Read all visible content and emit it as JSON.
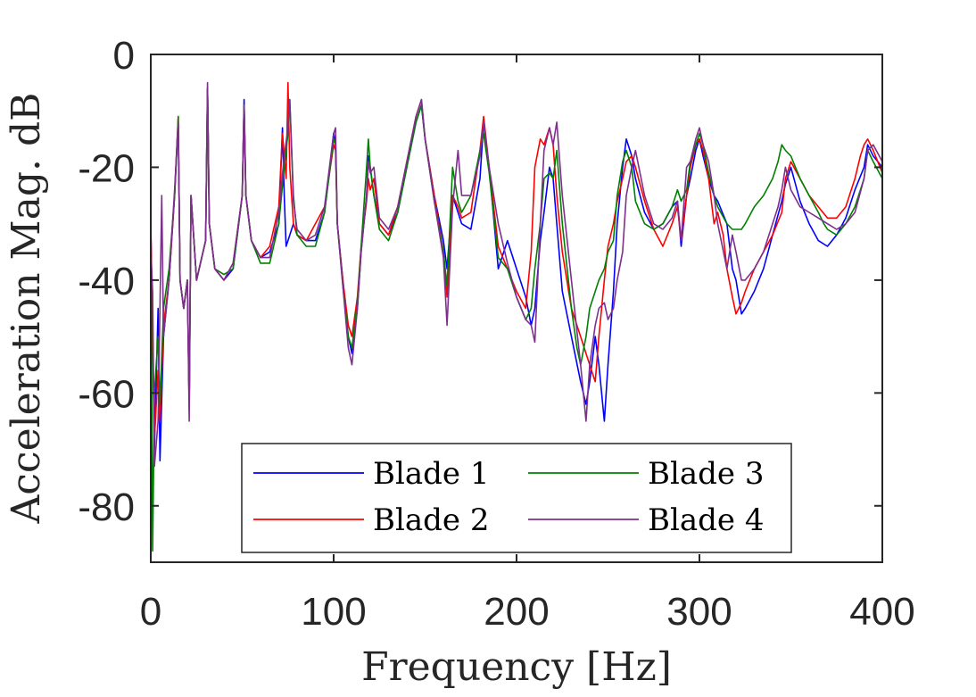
{
  "chart_data": {
    "type": "line",
    "title": "",
    "xlabel": "Frequency [Hz]",
    "ylabel": "Acceleration Mag. dB",
    "xlim": [
      0,
      400
    ],
    "ylim": [
      -90,
      0
    ],
    "xticks": [
      0,
      100,
      200,
      300,
      400
    ],
    "yticks": [
      0,
      -20,
      -40,
      -60,
      -80
    ],
    "xtick_labels": [
      "0",
      "100",
      "200",
      "300",
      "400"
    ],
    "ytick_labels": [
      "0",
      "-20",
      "-40",
      "-60",
      "-80"
    ],
    "grid": false,
    "legend": {
      "position": "bottom-center",
      "columns": 2
    },
    "series": [
      {
        "name": "Blade 1",
        "color": "#0000ff",
        "x": [
          0,
          2,
          4,
          5,
          7,
          10,
          13,
          15,
          16,
          18,
          20,
          21,
          22,
          25,
          30,
          31,
          32,
          35,
          40,
          45,
          50,
          51,
          52,
          55,
          60,
          65,
          70,
          72,
          73,
          74,
          75,
          78,
          80,
          85,
          90,
          95,
          100,
          101,
          102,
          105,
          108,
          110,
          113,
          115,
          118,
          119,
          120,
          122,
          125,
          130,
          135,
          140,
          145,
          148,
          150,
          155,
          160,
          162,
          165,
          168,
          170,
          175,
          180,
          182,
          185,
          190,
          195,
          200,
          205,
          208,
          210,
          213,
          215,
          218,
          220,
          222,
          225,
          230,
          235,
          238,
          240,
          243,
          245,
          248,
          250,
          253,
          255,
          258,
          260,
          263,
          265,
          270,
          275,
          280,
          285,
          288,
          290,
          293,
          295,
          298,
          300,
          302,
          305,
          308,
          310,
          315,
          318,
          320,
          323,
          325,
          330,
          335,
          340,
          345,
          347,
          350,
          355,
          360,
          365,
          370,
          375,
          380,
          385,
          390,
          392,
          395,
          400
        ],
        "values": [
          -30,
          -70,
          -45,
          -72,
          -50,
          -40,
          -25,
          -12,
          -40,
          -45,
          -40,
          -62,
          -25,
          -40,
          -33,
          -6,
          -30,
          -38,
          -40,
          -38,
          -25,
          -8,
          -25,
          -33,
          -36,
          -35,
          -30,
          -13,
          -25,
          -34,
          -33,
          -30,
          -32,
          -33,
          -33,
          -28,
          -14,
          -16,
          -30,
          -40,
          -50,
          -53,
          -45,
          -35,
          -25,
          -18,
          -20,
          -25,
          -30,
          -32,
          -28,
          -20,
          -12,
          -9,
          -15,
          -25,
          -33,
          -38,
          -25,
          -28,
          -30,
          -31,
          -22,
          -12,
          -20,
          -38,
          -33,
          -38,
          -43,
          -48,
          -45,
          -33,
          -28,
          -20,
          -22,
          -30,
          -42,
          -50,
          -58,
          -62,
          -58,
          -50,
          -55,
          -65,
          -55,
          -42,
          -30,
          -20,
          -15,
          -18,
          -22,
          -28,
          -31,
          -30,
          -27,
          -26,
          -34,
          -25,
          -22,
          -17,
          -15,
          -18,
          -22,
          -25,
          -26,
          -30,
          -38,
          -40,
          -46,
          -45,
          -42,
          -38,
          -32,
          -26,
          -23,
          -20,
          -26,
          -30,
          -33,
          -34,
          -32,
          -29,
          -24,
          -20,
          -16,
          -18,
          -20
        ]
      },
      {
        "name": "Blade 2",
        "color": "#ff0000",
        "x": [
          0,
          2,
          4,
          5,
          7,
          10,
          13,
          15,
          16,
          18,
          20,
          21,
          22,
          25,
          30,
          31,
          32,
          35,
          40,
          45,
          50,
          51,
          52,
          55,
          60,
          65,
          70,
          72,
          74,
          75,
          76,
          78,
          80,
          85,
          90,
          95,
          100,
          101,
          102,
          105,
          108,
          110,
          113,
          115,
          118,
          119,
          120,
          122,
          125,
          130,
          135,
          140,
          145,
          148,
          150,
          155,
          160,
          162,
          165,
          168,
          170,
          175,
          180,
          182,
          185,
          190,
          195,
          200,
          205,
          208,
          210,
          213,
          215,
          218,
          220,
          222,
          225,
          230,
          235,
          238,
          240,
          243,
          245,
          248,
          250,
          253,
          255,
          258,
          260,
          263,
          265,
          270,
          275,
          280,
          285,
          288,
          290,
          293,
          295,
          298,
          300,
          302,
          305,
          308,
          310,
          313,
          315,
          318,
          320,
          323,
          325,
          330,
          335,
          340,
          345,
          347,
          350,
          355,
          360,
          365,
          370,
          375,
          380,
          385,
          388,
          390,
          392,
          395,
          400
        ],
        "values": [
          -30,
          -68,
          -56,
          -65,
          -48,
          -40,
          -25,
          -11,
          -40,
          -45,
          -40,
          -63,
          -25,
          -40,
          -33,
          -6,
          -30,
          -38,
          -40,
          -37,
          -25,
          -9,
          -25,
          -33,
          -36,
          -34,
          -27,
          -14,
          -22,
          -5,
          -20,
          -30,
          -32,
          -33,
          -30,
          -27,
          -16,
          -17,
          -30,
          -40,
          -48,
          -50,
          -43,
          -34,
          -26,
          -22,
          -24,
          -22,
          -30,
          -32,
          -27,
          -19,
          -11,
          -8,
          -15,
          -25,
          -35,
          -43,
          -25,
          -27,
          -29,
          -28,
          -17,
          -11,
          -20,
          -34,
          -38,
          -42,
          -45,
          -35,
          -20,
          -15,
          -16,
          -13,
          -16,
          -25,
          -35,
          -45,
          -50,
          -53,
          -55,
          -58,
          -50,
          -40,
          -34,
          -30,
          -26,
          -22,
          -19,
          -18,
          -20,
          -26,
          -31,
          -34,
          -30,
          -27,
          -33,
          -25,
          -20,
          -16,
          -15,
          -17,
          -22,
          -30,
          -28,
          -32,
          -38,
          -43,
          -46,
          -44,
          -42,
          -38,
          -35,
          -32,
          -28,
          -22,
          -19,
          -22,
          -25,
          -27,
          -29,
          -29,
          -27,
          -22,
          -18,
          -16,
          -15,
          -17,
          -21
        ]
      },
      {
        "name": "Blade 3",
        "color": "#008000",
        "x": [
          0,
          1,
          2,
          4,
          5,
          7,
          10,
          13,
          15,
          16,
          18,
          20,
          21,
          22,
          25,
          30,
          31,
          32,
          35,
          40,
          45,
          50,
          51,
          52,
          55,
          60,
          65,
          70,
          73,
          75,
          76,
          78,
          80,
          85,
          90,
          95,
          100,
          101,
          102,
          105,
          108,
          110,
          113,
          115,
          118,
          119,
          120,
          122,
          125,
          130,
          135,
          140,
          145,
          148,
          150,
          155,
          160,
          162,
          165,
          168,
          170,
          175,
          180,
          182,
          185,
          190,
          195,
          200,
          205,
          208,
          210,
          213,
          215,
          218,
          220,
          222,
          225,
          230,
          233,
          235,
          238,
          240,
          243,
          245,
          248,
          250,
          253,
          255,
          258,
          260,
          263,
          265,
          270,
          275,
          280,
          285,
          288,
          290,
          293,
          295,
          298,
          300,
          302,
          305,
          308,
          310,
          315,
          318,
          320,
          323,
          325,
          330,
          335,
          340,
          343,
          345,
          347,
          350,
          355,
          360,
          365,
          368,
          370,
          375,
          380,
          385,
          390,
          392,
          395,
          400
        ],
        "values": [
          -30,
          -88,
          -60,
          -50,
          -62,
          -45,
          -38,
          -25,
          -11,
          -40,
          -45,
          -40,
          -62,
          -25,
          -40,
          -33,
          -6,
          -30,
          -38,
          -39,
          -38,
          -25,
          -9,
          -25,
          -33,
          -37,
          -37,
          -30,
          -20,
          -14,
          -8,
          -25,
          -32,
          -34,
          -34,
          -28,
          -15,
          -16,
          -30,
          -41,
          -50,
          -52,
          -44,
          -34,
          -20,
          -15,
          -20,
          -25,
          -31,
          -33,
          -28,
          -20,
          -12,
          -9,
          -15,
          -26,
          -35,
          -41,
          -20,
          -26,
          -28,
          -25,
          -17,
          -14,
          -21,
          -36,
          -38,
          -43,
          -47,
          -45,
          -38,
          -30,
          -22,
          -21,
          -22,
          -17,
          -30,
          -45,
          -52,
          -55,
          -50,
          -45,
          -42,
          -40,
          -38,
          -35,
          -33,
          -25,
          -19,
          -17,
          -20,
          -26,
          -30,
          -31,
          -30,
          -27,
          -24,
          -26,
          -24,
          -19,
          -16,
          -14,
          -16,
          -21,
          -25,
          -27,
          -30,
          -31,
          -31,
          -31,
          -30,
          -27,
          -25,
          -22,
          -19,
          -16,
          -17,
          -18,
          -22,
          -25,
          -28,
          -30,
          -31,
          -32,
          -30,
          -27,
          -22,
          -17,
          -19,
          -22
        ]
      },
      {
        "name": "Blade 4",
        "color": "#7e2f8e",
        "x": [
          0,
          1,
          2,
          4,
          5,
          6,
          7,
          10,
          13,
          15,
          16,
          18,
          20,
          21,
          22,
          25,
          30,
          31,
          32,
          35,
          40,
          45,
          50,
          51,
          52,
          55,
          60,
          65,
          70,
          73,
          75,
          76,
          78,
          80,
          85,
          90,
          95,
          100,
          101,
          102,
          105,
          108,
          110,
          113,
          115,
          118,
          119,
          120,
          122,
          125,
          130,
          135,
          140,
          145,
          148,
          150,
          155,
          160,
          162,
          165,
          168,
          170,
          175,
          180,
          182,
          185,
          190,
          195,
          200,
          205,
          208,
          210,
          213,
          215,
          218,
          220,
          222,
          225,
          230,
          235,
          238,
          240,
          243,
          245,
          248,
          250,
          253,
          255,
          258,
          260,
          263,
          265,
          270,
          275,
          280,
          285,
          288,
          290,
          293,
          295,
          298,
          300,
          302,
          305,
          308,
          310,
          315,
          318,
          320,
          323,
          325,
          330,
          335,
          340,
          343,
          345,
          347,
          350,
          355,
          360,
          365,
          370,
          375,
          380,
          385,
          390,
          392,
          395,
          400
        ],
        "values": [
          -35,
          -42,
          -73,
          -65,
          -45,
          -25,
          -50,
          -40,
          -24,
          -12,
          -40,
          -45,
          -40,
          -65,
          -25,
          -40,
          -33,
          -5,
          -30,
          -38,
          -40,
          -37,
          -25,
          -9,
          -25,
          -33,
          -36,
          -36,
          -28,
          -18,
          -13,
          -8,
          -26,
          -31,
          -33,
          -32,
          -27,
          -14,
          -13,
          -30,
          -41,
          -52,
          -55,
          -45,
          -35,
          -25,
          -19,
          -21,
          -20,
          -29,
          -31,
          -27,
          -19,
          -11,
          -8,
          -15,
          -26,
          -36,
          -48,
          -27,
          -17,
          -25,
          -25,
          -18,
          -12,
          -20,
          -30,
          -37,
          -43,
          -47,
          -48,
          -51,
          -30,
          -17,
          -13,
          -16,
          -12,
          -25,
          -40,
          -55,
          -65,
          -55,
          -48,
          -45,
          -44,
          -47,
          -45,
          -40,
          -35,
          -25,
          -20,
          -17,
          -25,
          -30,
          -31,
          -29,
          -26,
          -33,
          -20,
          -19,
          -15,
          -13,
          -16,
          -19,
          -25,
          -30,
          -38,
          -32,
          -35,
          -40,
          -40,
          -38,
          -35,
          -30,
          -27,
          -24,
          -20,
          -24,
          -27,
          -28,
          -29,
          -30,
          -31,
          -30,
          -28,
          -22,
          -17,
          -16,
          -19
        ]
      }
    ]
  }
}
